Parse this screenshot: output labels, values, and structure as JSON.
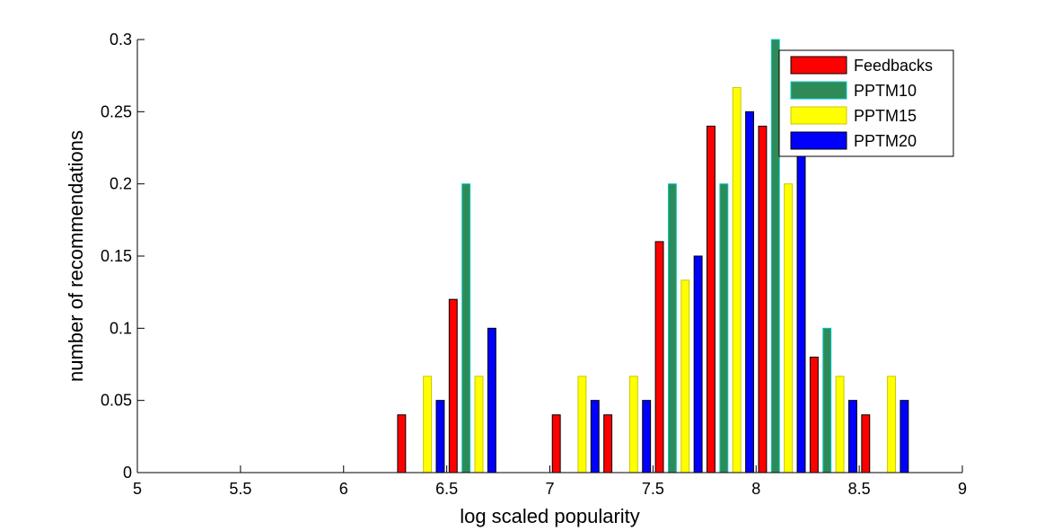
{
  "chart_data": {
    "type": "bar",
    "xlabel": "log scaled popularity",
    "ylabel": "number of recommendations",
    "xlim": [
      5,
      9
    ],
    "ylim": [
      0,
      0.3
    ],
    "x_ticks": [
      "5",
      "5.5",
      "6",
      "6.5",
      "7",
      "7.5",
      "8",
      "8.5",
      "9"
    ],
    "y_ticks": [
      "0",
      "0.05",
      "0.1",
      "0.15",
      "0.2",
      "0.25",
      "0.3"
    ],
    "categories": [
      5.125,
      5.375,
      5.625,
      5.875,
      6.125,
      6.375,
      6.625,
      6.875,
      7.125,
      7.375,
      7.625,
      7.875,
      8.125,
      8.375,
      8.625,
      8.875
    ],
    "series": [
      {
        "name": "Feedbacks",
        "color": "#ff0000",
        "edge": "#000000",
        "values": [
          0,
          0,
          0,
          0,
          0,
          0.04,
          0.12,
          0,
          0.04,
          0.04,
          0.16,
          0.24,
          0.24,
          0.08,
          0.04,
          0
        ]
      },
      {
        "name": "PPTM10",
        "color": "#2e8b57",
        "edge": "#00c8c8",
        "values": [
          0,
          0,
          0,
          0,
          0,
          0,
          0.2,
          0,
          0,
          0,
          0.2,
          0.2,
          0.3,
          0.1,
          0,
          0
        ]
      },
      {
        "name": "PPTM15",
        "color": "#ffff00",
        "edge": "#c8c800",
        "values": [
          0,
          0,
          0,
          0,
          0,
          0.0667,
          0.0667,
          0,
          0.0667,
          0.0667,
          0.1333,
          0.2667,
          0.2,
          0.0667,
          0.0667,
          0
        ]
      },
      {
        "name": "PPTM20",
        "color": "#0000ff",
        "edge": "#000000",
        "values": [
          0,
          0,
          0,
          0,
          0,
          0.05,
          0.1,
          0,
          0.05,
          0.05,
          0.15,
          0.25,
          0.25,
          0.05,
          0.05,
          0
        ]
      }
    ],
    "legend_position": "top-right",
    "grid": false
  }
}
